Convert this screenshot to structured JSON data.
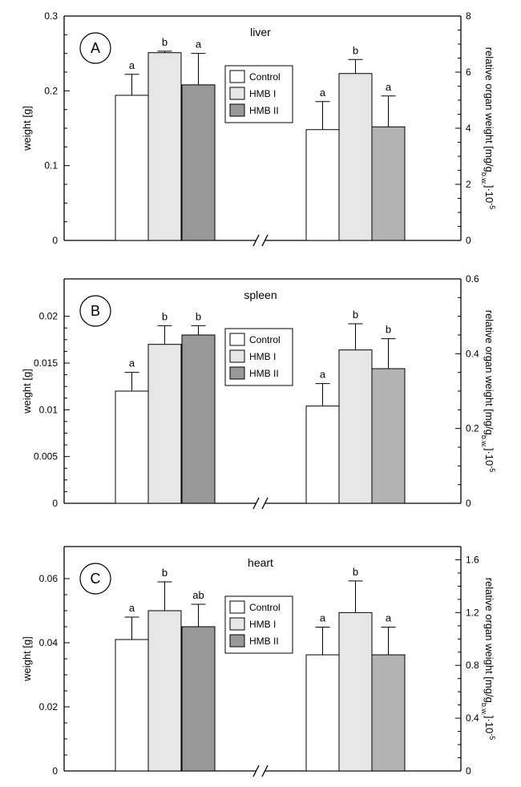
{
  "colors": {
    "control": "#ffffff",
    "hmb1": "#e6e6e6",
    "hmb2_left": "#999999",
    "hmb2_right": "#b3b3b3"
  },
  "chart_data": [
    {
      "type": "bar",
      "panel_label": "A",
      "title": "liver",
      "ylabel": "weight [g]",
      "ylabel_right": "relative organ weight [mg/g",
      "ylabel_right_sub": "b.w.",
      "ylabel_right_suffix": "]·10",
      "ylabel_right_sup": "-5",
      "ylim": [
        0,
        0.3
      ],
      "yticks": [
        0,
        0.1,
        0.2,
        0.3
      ],
      "yticklabels": [
        "0",
        "0.1",
        "0.2",
        "0.3"
      ],
      "ylim_right": [
        0,
        8
      ],
      "yticks_right": [
        0,
        2,
        4,
        6,
        8
      ],
      "yticklabels_right": [
        "0",
        "2",
        "4",
        "6",
        "8"
      ],
      "legend": [
        "Control",
        "HMB I",
        "HMB II"
      ],
      "groups": [
        {
          "axis": "left",
          "values": [
            0.194,
            0.251,
            0.208
          ],
          "errors": [
            0.028,
            0.002,
            0.042
          ],
          "labels": [
            "a",
            "b",
            "a"
          ]
        },
        {
          "axis": "right",
          "values": [
            3.95,
            5.95,
            4.05
          ],
          "errors": [
            1.0,
            0.5,
            1.1
          ],
          "labels": [
            "a",
            "b",
            "a"
          ]
        }
      ]
    },
    {
      "type": "bar",
      "panel_label": "B",
      "title": "spleen",
      "ylabel": "weight [g]",
      "ylabel_right": "relative organ weight [mg/g",
      "ylabel_right_sub": "b.w.",
      "ylabel_right_suffix": "]·10",
      "ylabel_right_sup": "-5",
      "ylim": [
        0,
        0.024
      ],
      "yticks": [
        0,
        0.005,
        0.01,
        0.015,
        0.02
      ],
      "yticklabels": [
        "0",
        "0.005",
        "0.01",
        "0.015",
        "0.02"
      ],
      "ylim_right": [
        0,
        0.6
      ],
      "yticks_right": [
        0,
        0.2,
        0.4,
        0.6
      ],
      "yticklabels_right": [
        "0",
        "0.2",
        "0.4",
        "0.6"
      ],
      "legend": [
        "Control",
        "HMB I",
        "HMB II"
      ],
      "groups": [
        {
          "axis": "left",
          "values": [
            0.012,
            0.017,
            0.018
          ],
          "errors": [
            0.002,
            0.002,
            0.001
          ],
          "labels": [
            "a",
            "b",
            "b"
          ]
        },
        {
          "axis": "right",
          "values": [
            0.26,
            0.41,
            0.36
          ],
          "errors": [
            0.06,
            0.07,
            0.08
          ],
          "labels": [
            "a",
            "b",
            "b"
          ]
        }
      ]
    },
    {
      "type": "bar",
      "panel_label": "C",
      "title": "heart",
      "ylabel": "weight [g]",
      "ylabel_right": "relative organ weight [mg/g",
      "ylabel_right_sub": "b.w.",
      "ylabel_right_suffix": "]·10",
      "ylabel_right_sup": "-5",
      "ylim": [
        0,
        0.07
      ],
      "yticks": [
        0,
        0.02,
        0.04,
        0.06
      ],
      "yticklabels": [
        "0",
        "0.02",
        "0.04",
        "0.06"
      ],
      "ylim_right": [
        0,
        1.7
      ],
      "yticks_right": [
        0,
        0.4,
        0.8,
        1.2,
        1.6
      ],
      "yticklabels_right": [
        "0",
        "0.4",
        "0.8",
        "1.2",
        "1.6"
      ],
      "legend": [
        "Control",
        "HMB I",
        "HMB II"
      ],
      "groups": [
        {
          "axis": "left",
          "values": [
            0.041,
            0.05,
            0.045
          ],
          "errors": [
            0.007,
            0.009,
            0.007
          ],
          "labels": [
            "a",
            "b",
            "ab"
          ]
        },
        {
          "axis": "right",
          "values": [
            0.88,
            1.2,
            0.88
          ],
          "errors": [
            0.21,
            0.24,
            0.21
          ],
          "labels": [
            "a",
            "b",
            "a"
          ]
        }
      ]
    }
  ]
}
